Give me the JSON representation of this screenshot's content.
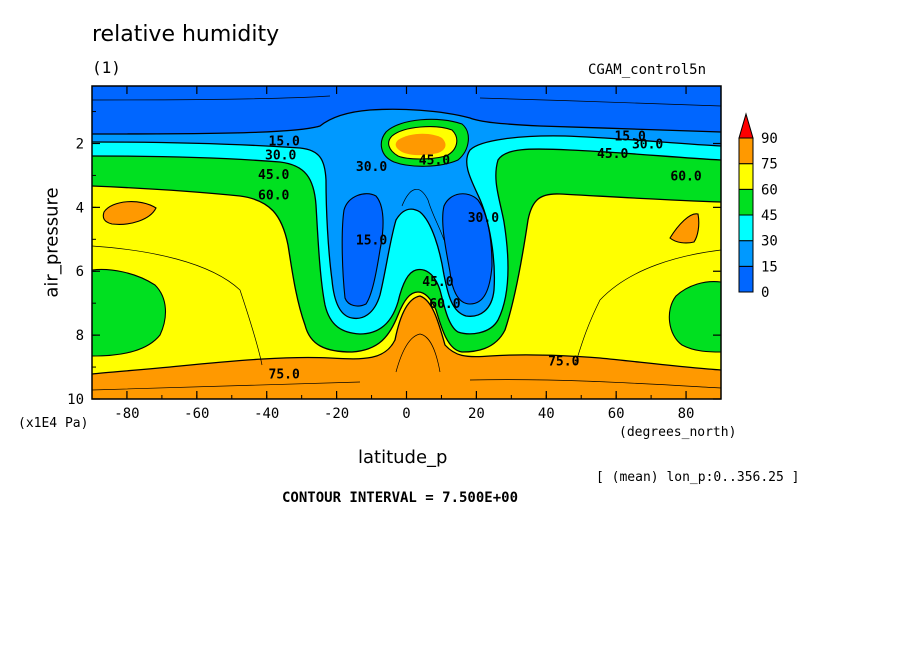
{
  "chart_data": {
    "type": "contour",
    "title": "relative humidity",
    "subtitle": "(1)",
    "run_label": "CGAM_control5n",
    "xlabel": "latitude_p",
    "xunit": "(degrees_north)",
    "ylabel": "air_pressure",
    "yunit": "(x1E4 Pa)",
    "averaging_note": "[ (mean) lon_p:0..356.25 ]",
    "contour_interval_text": "CONTOUR INTERVAL = 7.500E+00",
    "xlim": [
      -90,
      90
    ],
    "ylim": [
      10,
      0.2
    ],
    "x_ticks": [
      -80,
      -60,
      -40,
      -20,
      0,
      20,
      40,
      60,
      80
    ],
    "y_ticks": [
      2,
      4,
      6,
      8,
      10
    ],
    "colorbar": {
      "levels": [
        "0",
        "15",
        "30",
        "45",
        "60",
        "75",
        "90"
      ],
      "colors": [
        "#0066ff",
        "#0099ff",
        "#00ffff",
        "#00e020",
        "#ffff00",
        "#ff9900",
        "#ff0000"
      ]
    },
    "contour_labels": [
      {
        "text": "15.0",
        "lat": -35,
        "p": 1.9
      },
      {
        "text": "30.0",
        "lat": -36,
        "p": 2.35
      },
      {
        "text": "45.0",
        "lat": -38,
        "p": 2.95
      },
      {
        "text": "60.0",
        "lat": -38,
        "p": 3.6
      },
      {
        "text": "30.0",
        "lat": -10,
        "p": 2.7
      },
      {
        "text": "45.0",
        "lat": 8,
        "p": 2.5
      },
      {
        "text": "15.0",
        "lat": -10,
        "p": 5.0
      },
      {
        "text": "30.0",
        "lat": 22,
        "p": 4.3
      },
      {
        "text": "45.0",
        "lat": 9,
        "p": 6.3
      },
      {
        "text": "60.0",
        "lat": 11,
        "p": 7.0
      },
      {
        "text": "15.0",
        "lat": 64,
        "p": 1.75
      },
      {
        "text": "30.0",
        "lat": 69,
        "p": 2.0
      },
      {
        "text": "45.0",
        "lat": 59,
        "p": 2.3
      },
      {
        "text": "60.0",
        "lat": 80,
        "p": 3.0
      },
      {
        "text": "75.0",
        "lat": -35,
        "p": 9.2
      },
      {
        "text": "75.0",
        "lat": 45,
        "p": 8.8
      }
    ]
  }
}
